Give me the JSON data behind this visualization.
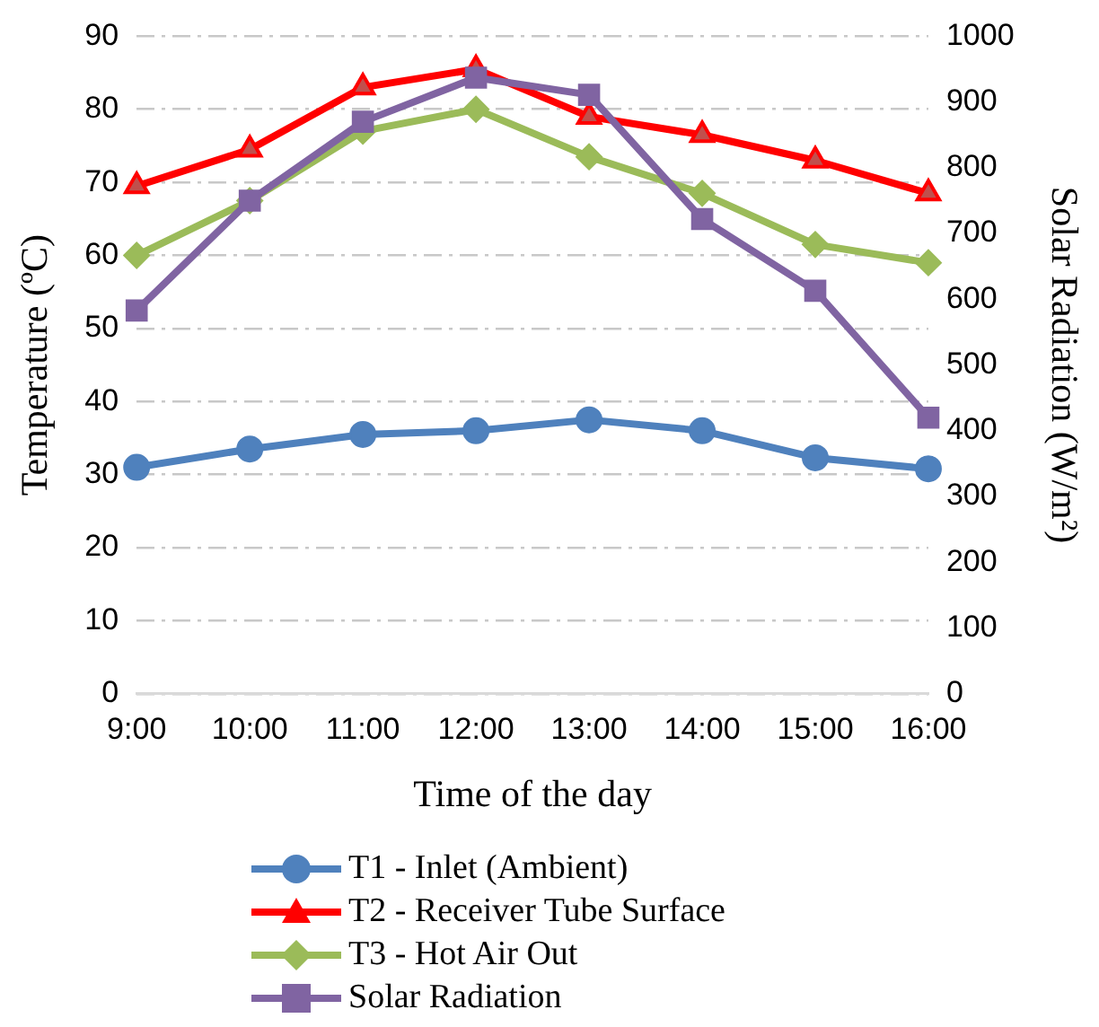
{
  "chart_data": {
    "type": "line",
    "xlabel": "Time of the day",
    "ylabel": "Temperature (ºC)",
    "y2label": "Solar Radiation (W/m²)",
    "categories": [
      "9:00",
      "10:00",
      "11:00",
      "12:00",
      "13:00",
      "14:00",
      "15:00",
      "16:00"
    ],
    "series": [
      {
        "name": "T1 - Inlet (Ambient)",
        "color": "#4f81bd",
        "marker": "circle",
        "values": [
          31,
          33.5,
          35.5,
          36,
          37.5,
          36,
          32.3,
          30.8
        ]
      },
      {
        "name": "T2 - Receiver Tube Surface",
        "color": "#ff0000",
        "marker": "triangle",
        "values": [
          69.5,
          74.5,
          83,
          85.5,
          79,
          76.5,
          73,
          68.5
        ]
      },
      {
        "name": "T3 - Hot Air Out",
        "color": "#9bbb59",
        "marker": "diamond",
        "values": [
          60,
          67.5,
          77,
          80,
          73.5,
          68.5,
          61.5,
          59
        ]
      },
      {
        "name": "Solar Radiation",
        "color": "#8064a2",
        "marker": "square",
        "axis": "y2",
        "values": [
          583,
          750,
          870,
          937,
          911,
          722,
          613,
          420
        ]
      }
    ],
    "ylim": [
      0,
      90
    ],
    "yticks": [
      0,
      10,
      20,
      30,
      40,
      50,
      60,
      70,
      80,
      90
    ],
    "y2lim": [
      0,
      1000
    ],
    "y2ticks": [
      0,
      100,
      200,
      300,
      400,
      500,
      600,
      700,
      800,
      900,
      1000
    ],
    "grid": "y",
    "legend": "bottom"
  }
}
